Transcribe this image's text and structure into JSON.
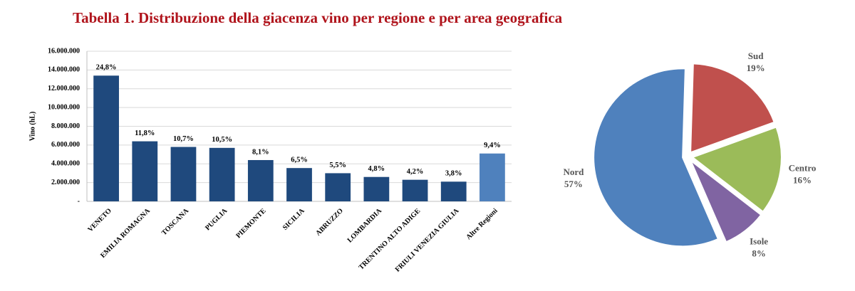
{
  "title": "Tabella 1. Distribuzione della giacenza vino per regione e per area geografica",
  "chart_data": [
    {
      "type": "bar",
      "ylabel": "Vino (hL)",
      "categories": [
        "VENETO",
        "EMILIA ROMAGNA",
        "TOSCANA",
        "PUGLIA",
        "PIEMONTE",
        "SICILIA",
        "ABRUZZO",
        "LOMBARDIA",
        "TRENTINO ALTO ADIGE",
        "FRIULI VENEZIA GIULIA",
        "Altre Regioni"
      ],
      "values": [
        13400000,
        6400000,
        5800000,
        5700000,
        4400000,
        3550000,
        3000000,
        2600000,
        2300000,
        2100000,
        5100000
      ],
      "share_labels": [
        "24,8%",
        "11,8%",
        "10,7%",
        "10,5%",
        "8,1%",
        "6,5%",
        "5,5%",
        "4,8%",
        "4,2%",
        "3,8%",
        "9,4%"
      ],
      "colors": [
        "#1f497d",
        "#1f497d",
        "#1f497d",
        "#1f497d",
        "#1f497d",
        "#1f497d",
        "#1f497d",
        "#1f497d",
        "#1f497d",
        "#1f497d",
        "#4f81bd"
      ],
      "ylim": [
        0,
        16000000
      ],
      "yticks": [
        {
          "value": 0,
          "label": "-"
        },
        {
          "value": 2000000,
          "label": "2.000.000"
        },
        {
          "value": 4000000,
          "label": "4.000.000"
        },
        {
          "value": 6000000,
          "label": "6.000.000"
        },
        {
          "value": 8000000,
          "label": "8.000.000"
        },
        {
          "value": 10000000,
          "label": "10.000.000"
        },
        {
          "value": 12000000,
          "label": "12.000.000"
        },
        {
          "value": 14000000,
          "label": "14.000.000"
        },
        {
          "value": 16000000,
          "label": "16.000.000"
        }
      ],
      "grid": true
    },
    {
      "type": "pie",
      "categories": [
        "Sud",
        "Centro",
        "Isole",
        "Nord"
      ],
      "values": [
        19,
        16,
        8,
        57
      ],
      "value_labels": [
        "19%",
        "16%",
        "8%",
        "57%"
      ],
      "colors": [
        "#c0504d",
        "#9bbb59",
        "#8064a2",
        "#4f81bd"
      ]
    }
  ]
}
